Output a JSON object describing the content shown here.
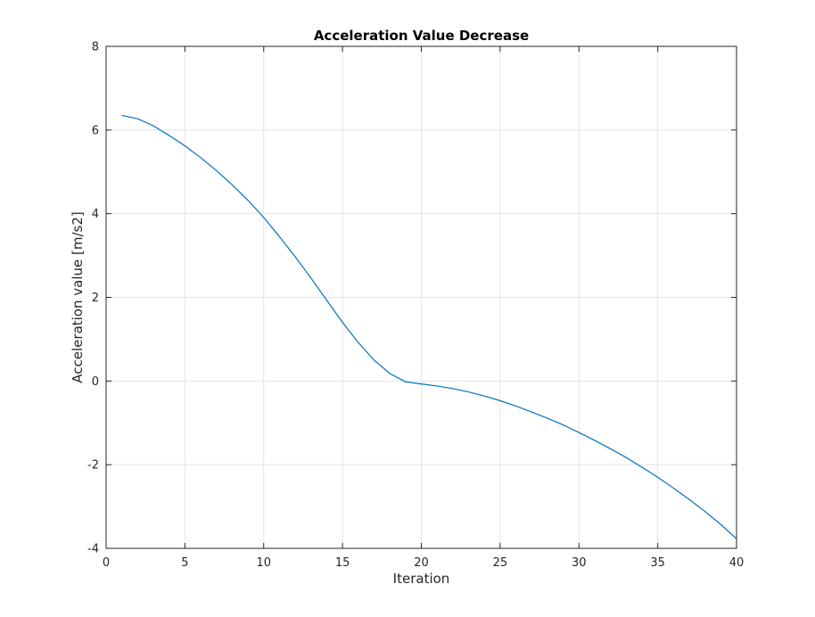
{
  "chart_data": {
    "type": "line",
    "title": "Acceleration Value Decrease",
    "xlabel": "Iteration",
    "ylabel": "Acceleration value [m/s2]",
    "xlim": [
      0,
      40
    ],
    "ylim": [
      -4,
      8
    ],
    "xticks": [
      0,
      5,
      10,
      15,
      20,
      25,
      30,
      35,
      40
    ],
    "yticks": [
      -4,
      -2,
      0,
      2,
      4,
      6,
      8
    ],
    "grid": true,
    "legend": "none",
    "series": [
      {
        "color": "#0072bd",
        "x": [
          1,
          2,
          3,
          4,
          5,
          6,
          7,
          8,
          9,
          10,
          11,
          12,
          13,
          14,
          15,
          16,
          17,
          18,
          19,
          20,
          21,
          22,
          23,
          24,
          25,
          26,
          27,
          28,
          29,
          30,
          31,
          32,
          33,
          34,
          35,
          36,
          37,
          38,
          39,
          40
        ],
        "y": [
          6.35,
          6.27,
          6.1,
          5.87,
          5.62,
          5.34,
          5.03,
          4.69,
          4.32,
          3.91,
          3.45,
          2.97,
          2.46,
          1.93,
          1.4,
          0.92,
          0.5,
          0.18,
          -0.02,
          -0.07,
          -0.12,
          -0.18,
          -0.26,
          -0.36,
          -0.47,
          -0.6,
          -0.74,
          -0.89,
          -1.05,
          -1.23,
          -1.42,
          -1.62,
          -1.83,
          -2.06,
          -2.3,
          -2.56,
          -2.83,
          -3.12,
          -3.43,
          -3.77
        ]
      }
    ]
  }
}
